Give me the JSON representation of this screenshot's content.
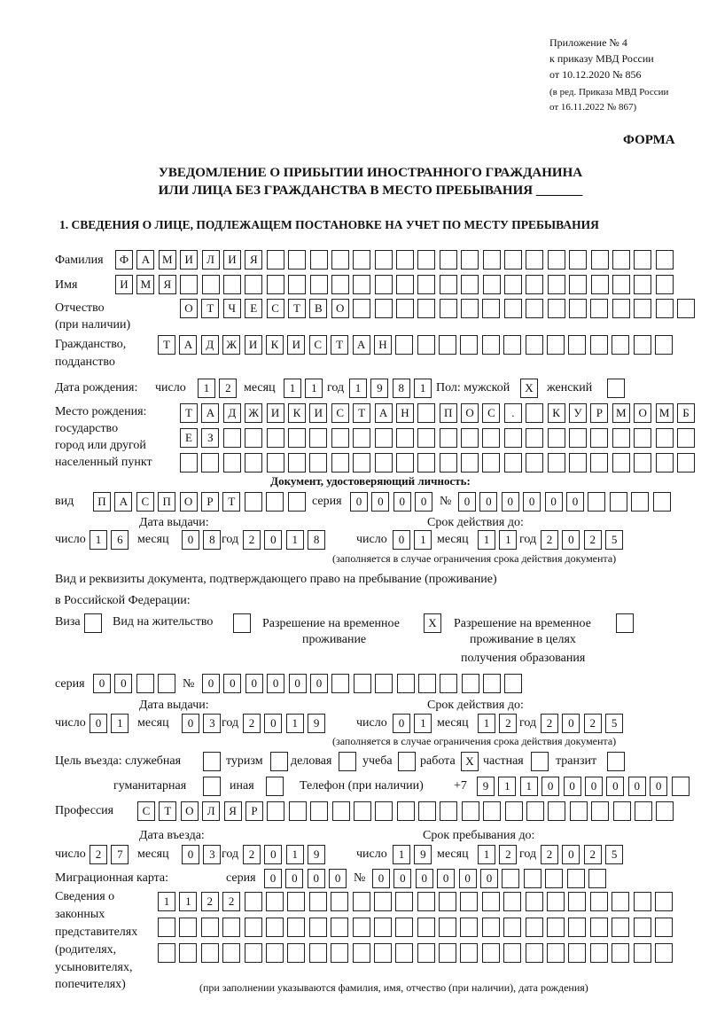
{
  "header": {
    "appendix": "Приложение № 4",
    "order": "к приказу МВД России",
    "order_date": "от 10.12.2020 № 856",
    "edition1": "(в ред. Приказа МВД России",
    "edition2": "от 16.11.2022 № 867)",
    "form": "ФОРМА",
    "title1": "УВЕДОМЛЕНИЕ О ПРИБЫТИИ ИНОСТРАННОГО ГРАЖДАНИНА",
    "title2": "ИЛИ ЛИЦА БЕЗ ГРАЖДАНСТВА В МЕСТО ПРЕБЫВАНИЯ _______",
    "section1": "1. СВЕДЕНИЯ О ЛИЦЕ, ПОДЛЕЖАЩЕМ ПОСТАНОВКЕ НА УЧЕТ ПО МЕСТУ ПРЕБЫВАНИЯ"
  },
  "labels": {
    "surname": "Фамилия",
    "name": "Имя",
    "patronymic": "Отчество",
    "if_any": "(при наличии)",
    "citizenship": "Гражданство,",
    "subject": "подданство",
    "birth_date": "Дата рождения:",
    "day": "число",
    "month": "месяц",
    "year": "год",
    "sex": "Пол: мужской",
    "female": "женский",
    "birth_place": "Место рождения:",
    "state": "государство",
    "city": "город или другой",
    "settlement": "населенный пункт",
    "id_doc": "Документ, удостоверяющий личность:",
    "kind": "вид",
    "series": "серия",
    "number": "№",
    "issue_date": "Дата выдачи:",
    "valid_until": "Срок действия до:",
    "valid_note": "(заполняется в случае ограничения срока действия документа)",
    "right_doc1": "Вид и реквизиты документа, подтверждающего право на пребывание (проживание)",
    "right_doc2": "в Российской Федерации:",
    "visa": "Виза",
    "residence": "Вид на жительство",
    "temp_permit": "Разрешение на временное",
    "temp_permit2": "проживание",
    "temp_edu": "Разрешение на временное",
    "temp_edu2": "проживание в целях",
    "temp_edu3": "получения образования",
    "purpose": "Цель въезда: служебная",
    "tourism": "туризм",
    "business": "деловая",
    "study": "учеба",
    "work": "работа",
    "private": "частная",
    "transit": "транзит",
    "humanitarian": "гуманитарная",
    "other": "иная",
    "phone": "Телефон (при наличии)",
    "phone_prefix": "+7",
    "profession": "Профессия",
    "entry_date": "Дата въезда:",
    "stay_until": "Срок пребывания до:",
    "migration_card": "Миграционная карта:",
    "rep1": "Сведения о",
    "rep2": "законных",
    "rep3": "представителях",
    "rep4": "(родителях,",
    "rep5": "усыновителях,",
    "rep6": "попечителях)",
    "rep_note": "(при заполнении указываются фамилия, имя, отчество (при наличии), дата рождения)"
  },
  "fields": {
    "surname": [
      "Ф",
      "А",
      "М",
      "И",
      "Л",
      "И",
      "Я",
      "",
      "",
      "",
      "",
      "",
      "",
      "",
      "",
      "",
      "",
      "",
      "",
      "",
      "",
      "",
      "",
      "",
      "",
      ""
    ],
    "name": [
      "И",
      "М",
      "Я",
      "",
      "",
      "",
      "",
      "",
      "",
      "",
      "",
      "",
      "",
      "",
      "",
      "",
      "",
      "",
      "",
      "",
      "",
      "",
      "",
      "",
      "",
      ""
    ],
    "patronymic": [
      "О",
      "Т",
      "Ч",
      "Е",
      "С",
      "Т",
      "В",
      "О",
      "",
      "",
      "",
      "",
      "",
      "",
      "",
      "",
      "",
      "",
      "",
      "",
      "",
      "",
      "",
      ""
    ],
    "citizenship": [
      "Т",
      "А",
      "Д",
      "Ж",
      "И",
      "К",
      "И",
      "С",
      "Т",
      "А",
      "Н",
      "",
      "",
      "",
      "",
      "",
      "",
      "",
      "",
      "",
      "",
      "",
      "",
      ""
    ],
    "birth_day": [
      "1",
      "2"
    ],
    "birth_month": [
      "1",
      "1"
    ],
    "birth_year": [
      "1",
      "9",
      "8",
      "1"
    ],
    "sex_male": [
      "X"
    ],
    "sex_female": [
      ""
    ],
    "birth_place1": [
      "Т",
      "А",
      "Д",
      "Ж",
      "И",
      "К",
      "И",
      "С",
      "Т",
      "А",
      "Н",
      "",
      "П",
      "О",
      "С",
      ".",
      "",
      "К",
      "У",
      "Р",
      "М",
      "О",
      "М",
      "Б"
    ],
    "birth_place2": [
      "Е",
      "З",
      "",
      "",
      "",
      "",
      "",
      "",
      "",
      "",
      "",
      "",
      "",
      "",
      "",
      "",
      "",
      "",
      "",
      "",
      "",
      "",
      "",
      ""
    ],
    "birth_place3": [
      "",
      "",
      "",
      "",
      "",
      "",
      "",
      "",
      "",
      "",
      "",
      "",
      "",
      "",
      "",
      "",
      "",
      "",
      "",
      "",
      "",
      "",
      "",
      ""
    ],
    "id_kind": [
      "П",
      "А",
      "С",
      "П",
      "О",
      "Р",
      "Т",
      "",
      "",
      ""
    ],
    "id_series": [
      "0",
      "0",
      "0",
      "0"
    ],
    "id_number": [
      "0",
      "0",
      "0",
      "0",
      "0",
      "0",
      "",
      "",
      "",
      ""
    ],
    "id_issue_day": [
      "1",
      "6"
    ],
    "id_issue_month": [
      "0",
      "8"
    ],
    "id_issue_year": [
      "2",
      "0",
      "1",
      "8"
    ],
    "id_valid_day": [
      "0",
      "1"
    ],
    "id_valid_month": [
      "1",
      "1"
    ],
    "id_valid_year": [
      "2",
      "0",
      "2",
      "5"
    ],
    "visa": [
      ""
    ],
    "residence": [
      ""
    ],
    "temp_permit": [
      "X"
    ],
    "temp_edu": [
      ""
    ],
    "rd_series": [
      "0",
      "0",
      "",
      ""
    ],
    "rd_number": [
      "0",
      "0",
      "0",
      "0",
      "0",
      "0",
      "",
      "",
      "",
      "",
      "",
      "",
      "",
      "",
      ""
    ],
    "rd_issue_day": [
      "0",
      "1"
    ],
    "rd_issue_month": [
      "0",
      "3"
    ],
    "rd_issue_year": [
      "2",
      "0",
      "1",
      "9"
    ],
    "rd_valid_day": [
      "0",
      "1"
    ],
    "rd_valid_month": [
      "1",
      "2"
    ],
    "rd_valid_year": [
      "2",
      "0",
      "2",
      "5"
    ],
    "p_service": [
      ""
    ],
    "p_tourism": [
      ""
    ],
    "p_business": [
      ""
    ],
    "p_study": [
      ""
    ],
    "p_work": [
      "X"
    ],
    "p_private": [
      ""
    ],
    "p_transit": [
      ""
    ],
    "p_humanitarian": [
      ""
    ],
    "p_other": [
      ""
    ],
    "phone": [
      "9",
      "1",
      "1",
      "0",
      "0",
      "0",
      "0",
      "0",
      "0",
      ""
    ],
    "profession": [
      "С",
      "Т",
      "О",
      "Л",
      "Я",
      "Р",
      "",
      "",
      "",
      "",
      "",
      "",
      "",
      "",
      "",
      "",
      "",
      "",
      "",
      "",
      "",
      "",
      "",
      "",
      ""
    ],
    "entry_day": [
      "2",
      "7"
    ],
    "entry_month": [
      "0",
      "3"
    ],
    "entry_year": [
      "2",
      "0",
      "1",
      "9"
    ],
    "stay_day": [
      "1",
      "9"
    ],
    "stay_month": [
      "1",
      "2"
    ],
    "stay_year": [
      "2",
      "0",
      "2",
      "5"
    ],
    "mc_series": [
      "0",
      "0",
      "0",
      "0"
    ],
    "mc_number": [
      "0",
      "0",
      "0",
      "0",
      "0",
      "0",
      "",
      "",
      "",
      "",
      ""
    ],
    "rep1": [
      "1",
      "1",
      "2",
      "2",
      "",
      "",
      "",
      "",
      "",
      "",
      "",
      "",
      "",
      "",
      "",
      "",
      "",
      "",
      "",
      "",
      "",
      "",
      "",
      ""
    ],
    "rep2": [
      "",
      "",
      "",
      "",
      "",
      "",
      "",
      "",
      "",
      "",
      "",
      "",
      "",
      "",
      "",
      "",
      "",
      "",
      "",
      "",
      "",
      "",
      "",
      ""
    ],
    "rep3": [
      "",
      "",
      "",
      "",
      "",
      "",
      "",
      "",
      "",
      "",
      "",
      "",
      "",
      "",
      "",
      "",
      "",
      "",
      "",
      "",
      "",
      "",
      "",
      ""
    ]
  }
}
